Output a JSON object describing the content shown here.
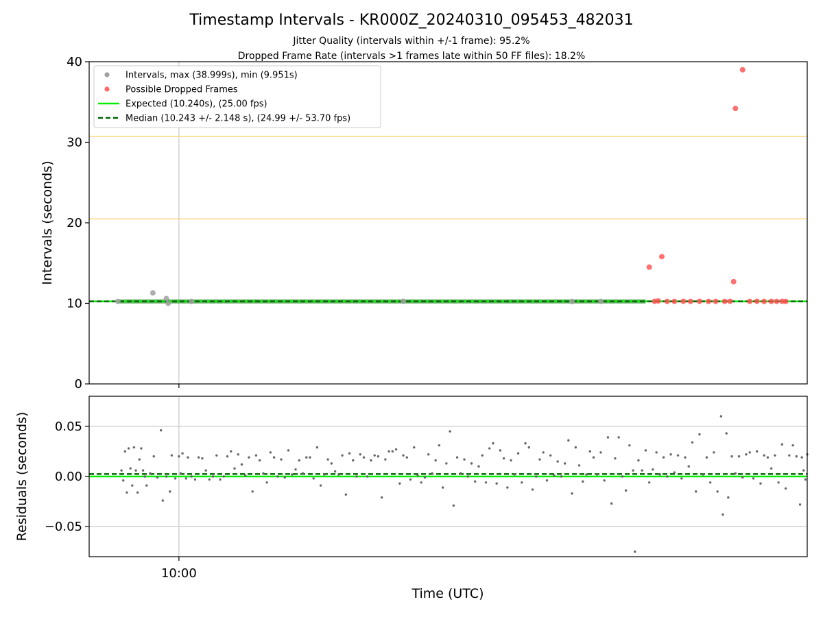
{
  "chart_data": {
    "title": "Timestamp Intervals - KR000Z_20240310_095453_482031",
    "subtitle_lines": [
      "Jitter Quality (intervals within +/-1 frame): 95.2%",
      "Dropped Frame Rate (intervals >1 frames late within 50 FF files): 18.2%"
    ],
    "xlabel": "Time (UTC)",
    "x_tick_label": "10:00",
    "x_tick_time_minutes": 0,
    "x_range_minutes": [
      -5.0,
      35.0
    ],
    "top": {
      "type": "scatter",
      "ylabel": "Intervals (seconds)",
      "ylim": [
        0,
        40
      ],
      "yticks": [
        "0",
        "10",
        "20",
        "30",
        "40"
      ],
      "reference_lines": [
        10.24,
        20.48,
        30.72,
        40.96
      ],
      "expected_value": 10.24,
      "median_value": 10.243,
      "legend_placement": "upper-left",
      "legend": [
        "Intervals, max (38.999s), min (9.951s)",
        "Possible Dropped Frames",
        "Expected (10.240s), (25.00 fps)",
        "Median (10.243 +/- 2.148 s), (24.99 +/- 53.70 fps)"
      ],
      "normal_points": [
        [
          -3.4,
          10.25
        ],
        [
          -1.45,
          11.3
        ],
        [
          -0.7,
          10.6
        ],
        [
          -0.6,
          10.0
        ],
        [
          0.7,
          10.24
        ],
        [
          12.5,
          10.26
        ],
        [
          21.9,
          10.23
        ],
        [
          23.5,
          10.25
        ]
      ],
      "dropped_points": [
        [
          26.2,
          14.5
        ],
        [
          26.5,
          10.26
        ],
        [
          26.7,
          10.3
        ],
        [
          26.9,
          15.8
        ],
        [
          27.2,
          10.25
        ],
        [
          27.6,
          10.25
        ],
        [
          28.1,
          10.26
        ],
        [
          28.5,
          10.24
        ],
        [
          29.0,
          10.26
        ],
        [
          29.5,
          10.25
        ],
        [
          29.9,
          10.25
        ],
        [
          30.4,
          10.25
        ],
        [
          30.7,
          10.26
        ],
        [
          30.9,
          12.7
        ],
        [
          31.0,
          34.2
        ],
        [
          31.4,
          38.999
        ],
        [
          31.8,
          10.25
        ],
        [
          32.2,
          10.26
        ],
        [
          32.6,
          10.24
        ],
        [
          33.0,
          10.25
        ],
        [
          33.3,
          10.25
        ],
        [
          33.6,
          10.26
        ],
        [
          33.8,
          10.24
        ]
      ]
    },
    "bottom": {
      "type": "scatter",
      "ylabel": "Residuals (seconds)",
      "ylim": [
        -0.08,
        0.08
      ],
      "yticks": [
        "0.05",
        "0.00",
        "−0.05"
      ],
      "expected_value": 0.0,
      "median_value": 0.0025,
      "residual_points": [
        [
          -3.2,
          0.006
        ],
        [
          -3.1,
          -0.004
        ],
        [
          -3.0,
          0.025
        ],
        [
          -2.9,
          -0.016
        ],
        [
          -2.8,
          0.028
        ],
        [
          -2.7,
          0.008
        ],
        [
          -2.6,
          -0.009
        ],
        [
          -2.5,
          0.029
        ],
        [
          -2.4,
          0.006
        ],
        [
          -2.3,
          -0.016
        ],
        [
          -2.2,
          0.017
        ],
        [
          -2.1,
          0.028
        ],
        [
          -2.0,
          0.006
        ],
        [
          -1.9,
          0.0
        ],
        [
          -1.8,
          -0.009
        ],
        [
          -1.6,
          0.003
        ],
        [
          -1.4,
          0.02
        ],
        [
          -1.2,
          -0.001
        ],
        [
          -1.0,
          0.046
        ],
        [
          -0.9,
          -0.024
        ],
        [
          -0.7,
          0.0
        ],
        [
          -0.5,
          -0.015
        ],
        [
          -0.4,
          0.021
        ],
        [
          -0.2,
          -0.002
        ],
        [
          0.0,
          0.02
        ],
        [
          0.1,
          0.003
        ],
        [
          0.2,
          0.023
        ],
        [
          0.4,
          -0.002
        ],
        [
          0.5,
          0.019
        ],
        [
          0.7,
          0.0
        ],
        [
          0.9,
          -0.003
        ],
        [
          1.1,
          0.019
        ],
        [
          1.3,
          0.018
        ],
        [
          1.5,
          0.006
        ],
        [
          1.7,
          -0.003
        ],
        [
          1.9,
          0.0
        ],
        [
          2.1,
          0.021
        ],
        [
          2.3,
          -0.003
        ],
        [
          2.5,
          0.0
        ],
        [
          2.7,
          0.02
        ],
        [
          2.9,
          0.025
        ],
        [
          3.1,
          0.008
        ],
        [
          3.3,
          0.022
        ],
        [
          3.5,
          0.012
        ],
        [
          3.7,
          0.001
        ],
        [
          3.9,
          0.019
        ],
        [
          4.1,
          -0.015
        ],
        [
          4.3,
          0.021
        ],
        [
          4.5,
          0.016
        ],
        [
          4.7,
          0.003
        ],
        [
          4.9,
          -0.006
        ],
        [
          5.1,
          0.024
        ],
        [
          5.3,
          0.019
        ],
        [
          5.5,
          0.0
        ],
        [
          5.7,
          0.017
        ],
        [
          5.9,
          -0.001
        ],
        [
          6.1,
          0.026
        ],
        [
          6.3,
          0.002
        ],
        [
          6.5,
          0.007
        ],
        [
          6.7,
          0.016
        ],
        [
          6.9,
          0.003
        ],
        [
          7.1,
          0.019
        ],
        [
          7.3,
          0.019
        ],
        [
          7.5,
          -0.002
        ],
        [
          7.7,
          0.029
        ],
        [
          7.9,
          -0.009
        ],
        [
          8.1,
          0.002
        ],
        [
          8.3,
          0.017
        ],
        [
          8.5,
          0.013
        ],
        [
          8.7,
          0.005
        ],
        [
          8.9,
          0.002
        ],
        [
          9.1,
          0.021
        ],
        [
          9.3,
          -0.018
        ],
        [
          9.5,
          0.023
        ],
        [
          9.7,
          0.016
        ],
        [
          9.9,
          0.0
        ],
        [
          10.1,
          0.022
        ],
        [
          10.3,
          0.019
        ],
        [
          10.5,
          0.0
        ],
        [
          10.7,
          0.016
        ],
        [
          10.9,
          0.021
        ],
        [
          11.1,
          0.02
        ],
        [
          11.3,
          -0.021
        ],
        [
          11.5,
          0.017
        ],
        [
          11.7,
          0.025
        ],
        [
          11.9,
          0.025
        ],
        [
          12.1,
          0.027
        ],
        [
          12.3,
          -0.007
        ],
        [
          12.5,
          0.021
        ],
        [
          12.7,
          0.019
        ],
        [
          12.9,
          -0.003
        ],
        [
          13.1,
          0.029
        ],
        [
          13.3,
          0.001
        ],
        [
          13.5,
          -0.006
        ],
        [
          13.7,
          -0.001
        ],
        [
          13.9,
          0.022
        ],
        [
          14.1,
          0.003
        ],
        [
          14.3,
          0.016
        ],
        [
          14.5,
          0.031
        ],
        [
          14.7,
          -0.011
        ],
        [
          14.9,
          0.013
        ],
        [
          15.1,
          0.045
        ],
        [
          15.3,
          -0.029
        ],
        [
          15.5,
          0.019
        ],
        [
          15.7,
          0.003
        ],
        [
          15.9,
          0.017
        ],
        [
          16.1,
          0.0
        ],
        [
          16.3,
          0.013
        ],
        [
          16.5,
          -0.005
        ],
        [
          16.7,
          0.01
        ],
        [
          16.9,
          0.021
        ],
        [
          17.1,
          -0.006
        ],
        [
          17.3,
          0.028
        ],
        [
          17.5,
          0.033
        ],
        [
          17.7,
          -0.007
        ],
        [
          17.9,
          0.026
        ],
        [
          18.1,
          0.018
        ],
        [
          18.3,
          -0.011
        ],
        [
          18.5,
          0.016
        ],
        [
          18.7,
          0.002
        ],
        [
          18.9,
          0.023
        ],
        [
          19.1,
          -0.006
        ],
        [
          19.3,
          0.033
        ],
        [
          19.5,
          0.029
        ],
        [
          19.7,
          -0.013
        ],
        [
          19.9,
          0.0
        ],
        [
          20.1,
          0.017
        ],
        [
          20.3,
          0.024
        ],
        [
          20.5,
          -0.004
        ],
        [
          20.7,
          0.021
        ],
        [
          20.9,
          0.001
        ],
        [
          21.1,
          0.015
        ],
        [
          21.3,
          0.0
        ],
        [
          21.5,
          0.013
        ],
        [
          21.7,
          0.036
        ],
        [
          21.9,
          -0.017
        ],
        [
          22.1,
          0.029
        ],
        [
          22.3,
          0.011
        ],
        [
          22.5,
          -0.005
        ],
        [
          22.7,
          0.002
        ],
        [
          22.9,
          0.025
        ],
        [
          23.1,
          0.019
        ],
        [
          23.3,
          0.002
        ],
        [
          23.5,
          0.024
        ],
        [
          23.7,
          -0.004
        ],
        [
          23.9,
          0.039
        ],
        [
          24.1,
          -0.027
        ],
        [
          24.3,
          0.018
        ],
        [
          24.5,
          0.039
        ],
        [
          24.7,
          0.0
        ],
        [
          24.9,
          -0.014
        ],
        [
          25.1,
          0.031
        ],
        [
          25.3,
          0.006
        ],
        [
          25.4,
          -0.075
        ],
        [
          25.6,
          0.016
        ],
        [
          25.8,
          0.006
        ],
        [
          26.0,
          0.026
        ],
        [
          26.2,
          -0.006
        ],
        [
          26.4,
          0.007
        ],
        [
          26.6,
          0.024
        ],
        [
          26.8,
          0.002
        ],
        [
          27.0,
          0.019
        ],
        [
          27.2,
          0.0
        ],
        [
          27.4,
          0.022
        ],
        [
          27.6,
          0.004
        ],
        [
          27.8,
          0.021
        ],
        [
          28.0,
          -0.002
        ],
        [
          28.2,
          0.019
        ],
        [
          28.4,
          0.01
        ],
        [
          28.6,
          0.034
        ],
        [
          28.8,
          -0.015
        ],
        [
          29.0,
          0.042
        ],
        [
          29.2,
          0.002
        ],
        [
          29.4,
          0.019
        ],
        [
          29.6,
          -0.006
        ],
        [
          29.8,
          0.024
        ],
        [
          30.0,
          -0.015
        ],
        [
          30.2,
          0.06
        ],
        [
          30.3,
          -0.038
        ],
        [
          30.5,
          0.043
        ],
        [
          30.6,
          -0.021
        ],
        [
          30.8,
          0.02
        ],
        [
          31.0,
          0.003
        ],
        [
          31.2,
          0.02
        ],
        [
          31.4,
          -0.001
        ],
        [
          31.6,
          0.022
        ],
        [
          31.8,
          0.024
        ],
        [
          32.0,
          -0.002
        ],
        [
          32.2,
          0.025
        ],
        [
          32.4,
          -0.007
        ],
        [
          32.6,
          0.021
        ],
        [
          32.8,
          0.019
        ],
        [
          33.0,
          0.008
        ],
        [
          33.2,
          0.021
        ],
        [
          33.4,
          -0.006
        ],
        [
          33.6,
          0.032
        ],
        [
          33.8,
          -0.012
        ],
        [
          34.0,
          0.021
        ],
        [
          34.2,
          0.031
        ],
        [
          34.4,
          0.02
        ],
        [
          34.6,
          -0.028
        ],
        [
          34.7,
          0.019
        ],
        [
          34.8,
          0.006
        ],
        [
          34.9,
          -0.003
        ],
        [
          35.0,
          0.022
        ]
      ]
    }
  },
  "colors": {
    "normal_points": "#a0a0a0",
    "dropped_points": "#ff4d4d",
    "expected_line": "#00ee00",
    "median_line": "#006400",
    "reference_lines": "#ffd27a",
    "residual_points": "#666666",
    "grid": "#c8c8c8",
    "normal_line_band": "#3a9a3a"
  }
}
